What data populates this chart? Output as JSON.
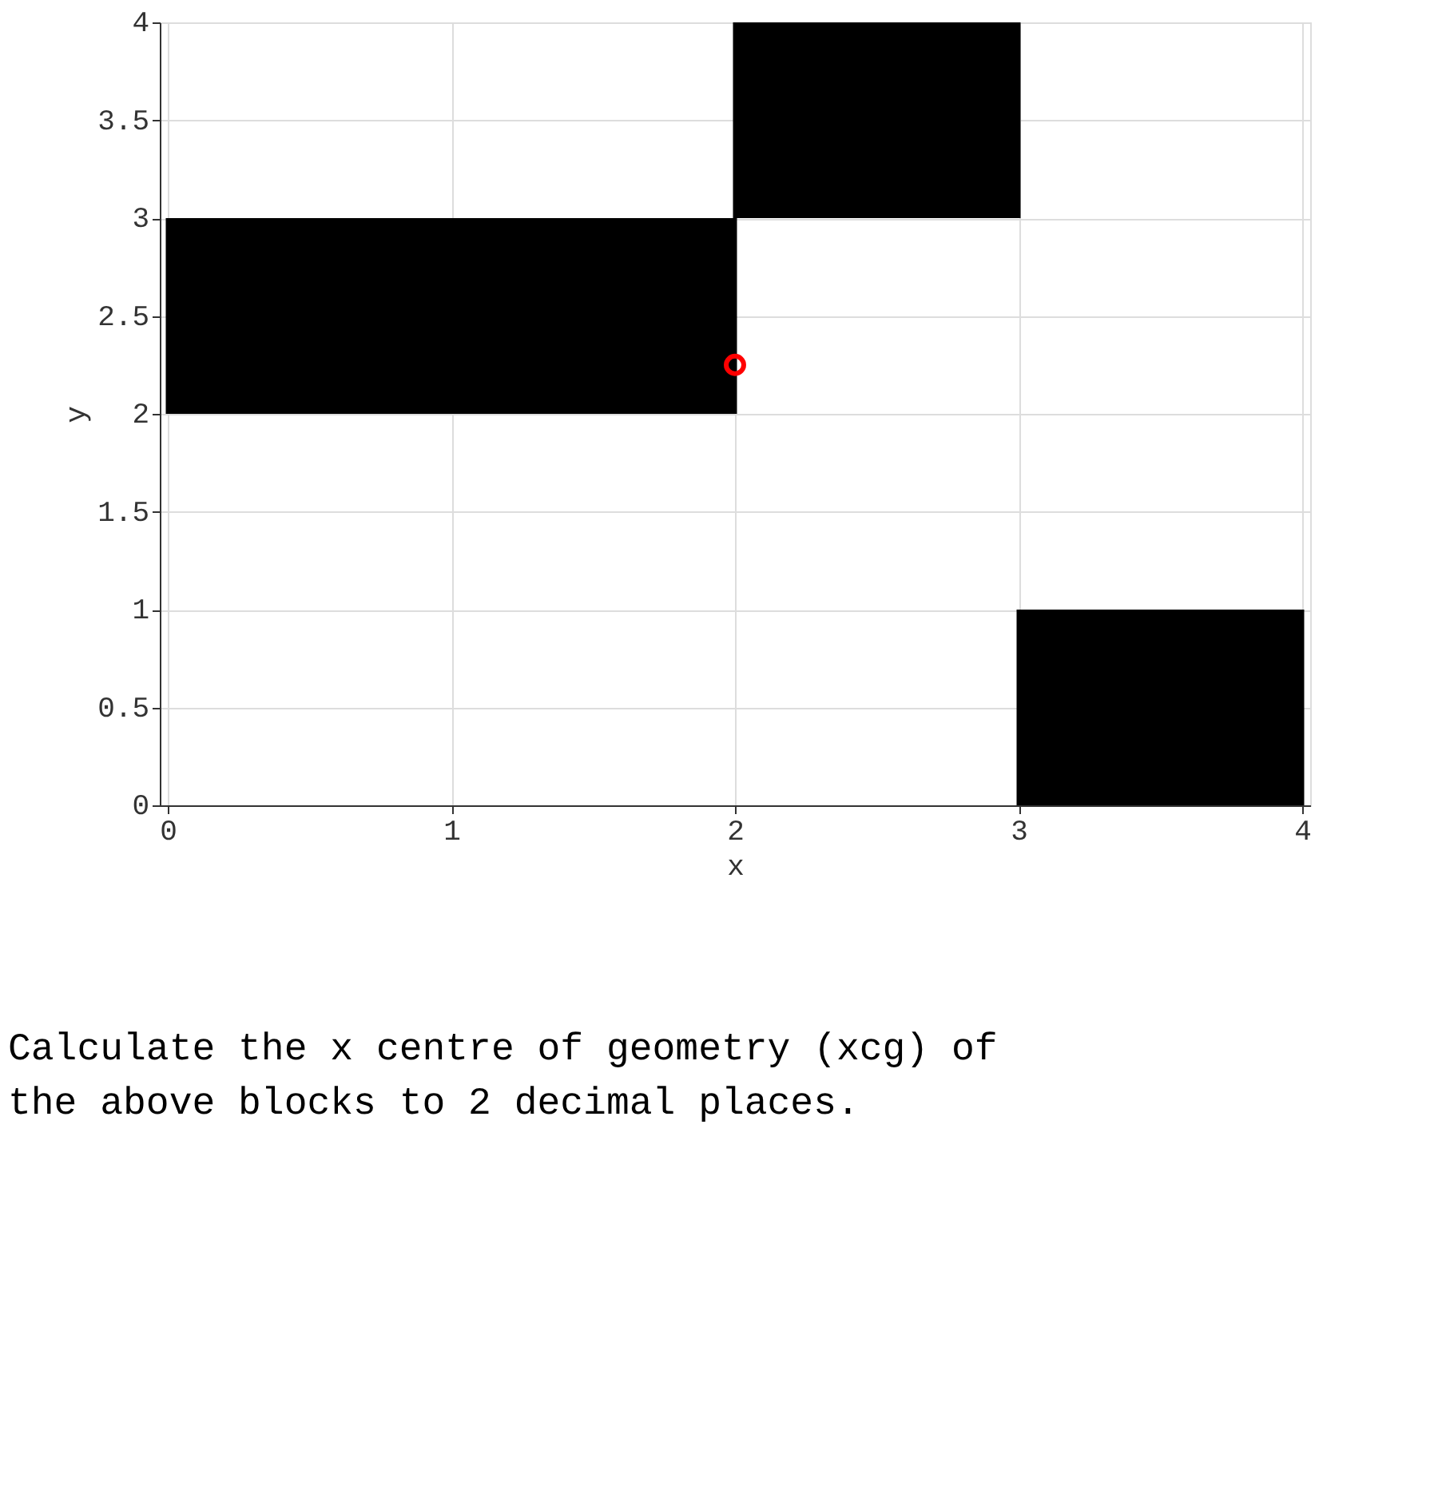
{
  "chart_data": {
    "type": "bar",
    "xlabel": "x",
    "ylabel": "y",
    "xlim": [
      0,
      4
    ],
    "ylim": [
      0,
      4
    ],
    "xticks": [
      0,
      1,
      2,
      3,
      4
    ],
    "yticks": [
      0,
      0.5,
      1,
      1.5,
      2,
      2.5,
      3,
      3.5,
      4
    ],
    "grid": true,
    "series": [
      {
        "color": "#000000",
        "x": [
          0.5,
          1.5,
          2.5,
          3.5
        ],
        "base": [
          2,
          2,
          3,
          0
        ],
        "values": [
          1,
          1,
          1,
          1
        ]
      },
      {
        "type": "scatter",
        "color": "#ff0000",
        "marker": "circle",
        "x": [
          2
        ],
        "values": [
          2.25
        ]
      }
    ],
    "annotations": [
      "Calculate the x centre of geometry (xcg) of the above blocks to 2 decimal places."
    ]
  }
}
